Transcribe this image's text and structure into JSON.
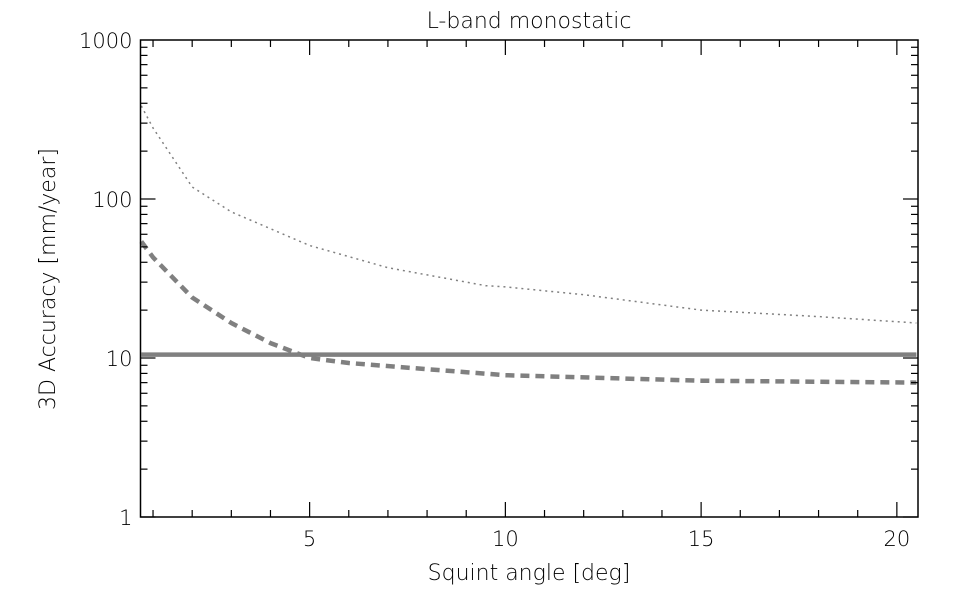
{
  "chart_data": {
    "type": "line",
    "title": "L-band monostatic",
    "xlabel": "Squint angle [deg]",
    "ylabel": "3D Accuracy [mm/year]",
    "xlim": [
      0.68,
      20.54
    ],
    "ylim": [
      1,
      1000
    ],
    "yscale": "log",
    "x_ticks": [
      5,
      10,
      15,
      20
    ],
    "x_tick_labels": [
      "5",
      "10",
      "15",
      "20"
    ],
    "y_ticks": [
      1,
      10,
      100,
      1000
    ],
    "y_tick_labels": [
      "1",
      "10",
      "100",
      "1000"
    ],
    "grid": false,
    "line_color": "#808080",
    "series": [
      {
        "style": "dotted",
        "x": [
          0.7,
          1,
          2,
          3,
          5,
          7,
          9.5,
          10,
          12,
          15,
          18,
          20.5
        ],
        "y": [
          385,
          280,
          119,
          83,
          51,
          37,
          28.5,
          28,
          25,
          20,
          18.2,
          16.6
        ]
      },
      {
        "style": "dashed",
        "x": [
          0.7,
          1,
          2,
          3,
          4,
          5,
          6,
          8,
          10,
          15,
          20.5
        ],
        "y": [
          54,
          43,
          24,
          16.6,
          12.4,
          10,
          9.3,
          8.5,
          7.8,
          7.2,
          7.0
        ]
      },
      {
        "style": "solid",
        "x": [
          0.7,
          20.5
        ],
        "y": [
          10.5,
          10.5
        ]
      }
    ]
  }
}
